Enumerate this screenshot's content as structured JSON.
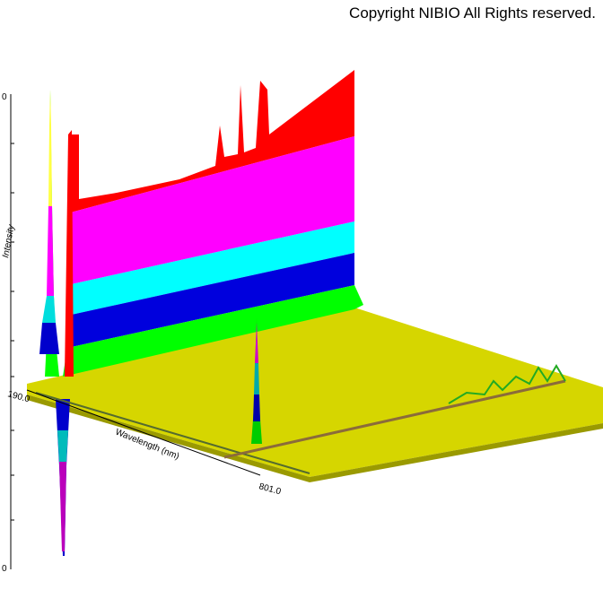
{
  "copyright": "Copyright NIBIO All Rights reserved.",
  "axes": {
    "intensity_label": "Intensity",
    "wavelength_label": "Wavelength (nm)",
    "wavelength_start": "190.0",
    "wavelength_end": "801.0",
    "intensity_top": "0",
    "intensity_bottom": "0"
  }
}
